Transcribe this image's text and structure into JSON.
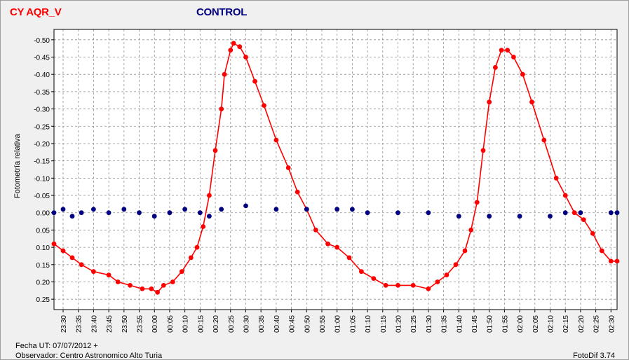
{
  "header": {
    "series_a_label": "CY AQR_V",
    "series_b_label": "CONTROL"
  },
  "footer": {
    "date_line": "Fecha UT: 07/07/2012 +",
    "observer_line": "Observador: Centro Astronomico Alto Turia",
    "software": "FotoDif 3.74"
  },
  "colors": {
    "series_a": "#ff0000",
    "series_b": "#000080",
    "grid": "#909090"
  },
  "chart_data": {
    "type": "scatter",
    "ylabel": "Fotometría relativa",
    "y_inverted": true,
    "ylim": [
      0.28,
      -0.53
    ],
    "xlim": [
      "23:27",
      "02:32"
    ],
    "grid": true,
    "x_ticks": [
      "23:30",
      "23:35",
      "23:40",
      "23:45",
      "23:50",
      "23:55",
      "00:00",
      "00:05",
      "00:10",
      "00:15",
      "00:20",
      "00:25",
      "00:30",
      "00:35",
      "00:40",
      "00:45",
      "00:50",
      "00:55",
      "01:00",
      "01:05",
      "01:10",
      "01:15",
      "01:20",
      "01:25",
      "01:30",
      "01:35",
      "01:40",
      "01:45",
      "01:50",
      "01:55",
      "02:00",
      "02:05",
      "02:10",
      "02:15",
      "02:20",
      "02:25",
      "02:30"
    ],
    "y_ticks": [
      "-0.50",
      "-0.45",
      "-0.40",
      "-0.35",
      "-0.30",
      "-0.25",
      "-0.20",
      "-0.15",
      "-0.10",
      "-0.05",
      "0.00",
      "0.05",
      "0.10",
      "0.15",
      "0.20",
      "0.25"
    ],
    "series": [
      {
        "name": "CY AQR_V",
        "color": "#ff0000",
        "line": true,
        "points": [
          [
            "23:27",
            0.09
          ],
          [
            "23:30",
            0.11
          ],
          [
            "23:33",
            0.13
          ],
          [
            "23:36",
            0.15
          ],
          [
            "23:40",
            0.17
          ],
          [
            "23:45",
            0.18
          ],
          [
            "23:48",
            0.2
          ],
          [
            "23:52",
            0.21
          ],
          [
            "23:56",
            0.22
          ],
          [
            "23:59",
            0.22
          ],
          [
            "00:01",
            0.23
          ],
          [
            "00:03",
            0.21
          ],
          [
            "00:06",
            0.2
          ],
          [
            "00:09",
            0.17
          ],
          [
            "00:12",
            0.13
          ],
          [
            "00:14",
            0.1
          ],
          [
            "00:16",
            0.04
          ],
          [
            "00:18",
            -0.05
          ],
          [
            "00:20",
            -0.18
          ],
          [
            "00:22",
            -0.3
          ],
          [
            "00:23",
            -0.4
          ],
          [
            "00:25",
            -0.47
          ],
          [
            "00:26",
            -0.49
          ],
          [
            "00:28",
            -0.48
          ],
          [
            "00:30",
            -0.45
          ],
          [
            "00:33",
            -0.38
          ],
          [
            "00:36",
            -0.31
          ],
          [
            "00:40",
            -0.21
          ],
          [
            "00:44",
            -0.13
          ],
          [
            "00:47",
            -0.06
          ],
          [
            "00:50",
            -0.01
          ],
          [
            "00:53",
            0.05
          ],
          [
            "00:57",
            0.09
          ],
          [
            "01:00",
            0.1
          ],
          [
            "01:04",
            0.13
          ],
          [
            "01:08",
            0.17
          ],
          [
            "01:12",
            0.19
          ],
          [
            "01:16",
            0.21
          ],
          [
            "01:20",
            0.21
          ],
          [
            "01:25",
            0.21
          ],
          [
            "01:30",
            0.22
          ],
          [
            "01:33",
            0.2
          ],
          [
            "01:36",
            0.18
          ],
          [
            "01:39",
            0.15
          ],
          [
            "01:42",
            0.11
          ],
          [
            "01:44",
            0.05
          ],
          [
            "01:46",
            -0.03
          ],
          [
            "01:48",
            -0.18
          ],
          [
            "01:50",
            -0.32
          ],
          [
            "01:52",
            -0.42
          ],
          [
            "01:54",
            -0.47
          ],
          [
            "01:56",
            -0.47
          ],
          [
            "01:58",
            -0.45
          ],
          [
            "02:01",
            -0.4
          ],
          [
            "02:04",
            -0.32
          ],
          [
            "02:08",
            -0.21
          ],
          [
            "02:12",
            -0.1
          ],
          [
            "02:15",
            -0.05
          ],
          [
            "02:18",
            0.0
          ],
          [
            "02:21",
            0.02
          ],
          [
            "02:24",
            0.06
          ],
          [
            "02:27",
            0.11
          ],
          [
            "02:30",
            0.14
          ],
          [
            "02:32",
            0.14
          ]
        ]
      },
      {
        "name": "CONTROL",
        "color": "#000080",
        "line": false,
        "points": [
          [
            "23:27",
            0.0
          ],
          [
            "23:30",
            -0.01
          ],
          [
            "23:33",
            0.01
          ],
          [
            "23:36",
            0.0
          ],
          [
            "23:40",
            -0.01
          ],
          [
            "23:45",
            0.0
          ],
          [
            "23:50",
            -0.01
          ],
          [
            "23:55",
            0.0
          ],
          [
            "00:00",
            0.01
          ],
          [
            "00:05",
            0.0
          ],
          [
            "00:10",
            -0.01
          ],
          [
            "00:15",
            0.0
          ],
          [
            "00:18",
            0.01
          ],
          [
            "00:22",
            -0.01
          ],
          [
            "00:30",
            -0.02
          ],
          [
            "00:40",
            -0.01
          ],
          [
            "00:50",
            -0.01
          ],
          [
            "01:00",
            -0.01
          ],
          [
            "01:05",
            -0.01
          ],
          [
            "01:10",
            0.0
          ],
          [
            "01:20",
            0.0
          ],
          [
            "01:30",
            0.0
          ],
          [
            "01:40",
            0.01
          ],
          [
            "01:50",
            0.01
          ],
          [
            "02:00",
            0.01
          ],
          [
            "02:10",
            0.01
          ],
          [
            "02:15",
            0.0
          ],
          [
            "02:20",
            0.0
          ],
          [
            "02:30",
            0.0
          ],
          [
            "02:32",
            0.0
          ]
        ]
      }
    ]
  }
}
